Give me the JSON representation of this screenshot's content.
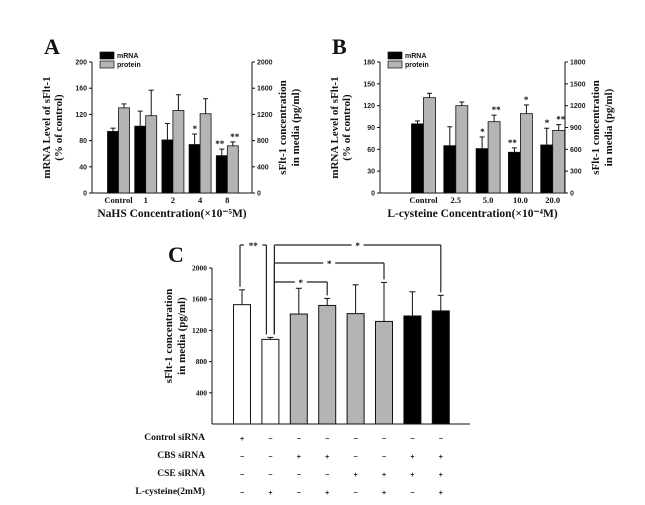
{
  "colors": {
    "mrna": "#000000",
    "protein": "#b4b4b4",
    "white": "#ffffff",
    "gray": "#b4b4b4",
    "black": "#000000"
  },
  "chart_data": [
    {
      "panel": "A",
      "type": "bar",
      "xlabel": "NaHS Concentration(×10⁻⁵M)",
      "ylabel_lines": [
        "mRNA Level of sFlt-1",
        "(% of control)"
      ],
      "y2label_lines": [
        "sFlt-1 concentration",
        "in media (pg/ml)"
      ],
      "categories": [
        "Control",
        "1",
        "2",
        "4",
        "8"
      ],
      "ylim": [
        0,
        200
      ],
      "yticks": [
        0,
        40,
        80,
        120,
        160,
        200
      ],
      "y2lim": [
        0,
        2000
      ],
      "y2ticks": [
        0,
        400,
        800,
        1200,
        1600,
        2000
      ],
      "legend": [
        "mRNA",
        "protein"
      ],
      "legend_placement": "top-left",
      "series": [
        {
          "name": "mRNA",
          "axis": "left",
          "values": [
            94,
            102,
            81,
            74,
            57
          ],
          "errors": [
            5,
            23,
            25,
            16,
            10
          ],
          "sig": [
            "",
            "",
            "",
            "*",
            "**"
          ]
        },
        {
          "name": "protein",
          "axis": "right",
          "values": [
            1300,
            1180,
            1260,
            1210,
            720
          ],
          "errors": [
            60,
            390,
            240,
            230,
            60
          ],
          "sig": [
            "",
            "",
            "",
            "",
            "**"
          ]
        }
      ]
    },
    {
      "panel": "B",
      "type": "bar",
      "xlabel": "L-cysteine Concentration(×10⁻⁴M)",
      "ylabel_lines": [
        "mRNA Level of sFlt-1",
        "(% of control)"
      ],
      "y2label_lines": [
        "sFlt-1 concentration",
        "in media (pg/ml)"
      ],
      "categories": [
        "Control",
        "2.5",
        "5.0",
        "10.0",
        "20.0"
      ],
      "ylim": [
        0,
        180
      ],
      "yticks": [
        0,
        30,
        60,
        90,
        120,
        150,
        180
      ],
      "y2lim": [
        0,
        1800
      ],
      "y2ticks": [
        0,
        300,
        600,
        900,
        1200,
        1500,
        1800
      ],
      "legend": [
        "mRNA",
        "protein"
      ],
      "legend_placement": "top-left",
      "series": [
        {
          "name": "mRNA",
          "axis": "left",
          "values": [
            95,
            65,
            61,
            56,
            66
          ],
          "errors": [
            4,
            26,
            16,
            6,
            23
          ],
          "sig": [
            "",
            "",
            "*",
            "**",
            "*"
          ]
        },
        {
          "name": "protein",
          "axis": "right",
          "values": [
            1310,
            1200,
            980,
            1090,
            860
          ],
          "errors": [
            60,
            50,
            90,
            120,
            80
          ],
          "sig": [
            "",
            "",
            "**",
            "*",
            "**"
          ]
        }
      ]
    },
    {
      "panel": "C",
      "type": "bar",
      "ylabel_lines": [
        "sFlt-1 concentration",
        "in media (pg/ml)"
      ],
      "ylim": [
        0,
        2000
      ],
      "yticks": [
        400,
        800,
        1200,
        1600,
        2000
      ],
      "values": [
        1530,
        1085,
        1410,
        1520,
        1415,
        1315,
        1385,
        1450
      ],
      "errors": [
        190,
        25,
        330,
        90,
        370,
        500,
        310,
        200
      ],
      "bar_colors": [
        "white",
        "white",
        "gray",
        "gray",
        "gray",
        "gray",
        "black",
        "black"
      ],
      "comparisons": [
        {
          "from": 1,
          "to": 2,
          "label": "**"
        },
        {
          "from": 2,
          "to": 4,
          "label": "*"
        },
        {
          "from": 2,
          "to": 6,
          "label": "*"
        },
        {
          "from": 2,
          "to": 8,
          "label": "*"
        }
      ],
      "conditions": [
        {
          "label": "Control siRNA",
          "signs": [
            "+",
            "−",
            "−",
            "−",
            "−",
            "−",
            "−",
            "−"
          ]
        },
        {
          "label": "CBS siRNA",
          "signs": [
            "−",
            "−",
            "+",
            "+",
            "−",
            "−",
            "+",
            "+"
          ]
        },
        {
          "label": "CSE siRNA",
          "signs": [
            "−",
            "−",
            "−",
            "−",
            "+",
            "+",
            "+",
            "+"
          ]
        },
        {
          "label": "L-cysteine(2mM)",
          "signs": [
            "−",
            "+",
            "−",
            "+",
            "−",
            "+",
            "−",
            "+"
          ]
        }
      ]
    }
  ]
}
